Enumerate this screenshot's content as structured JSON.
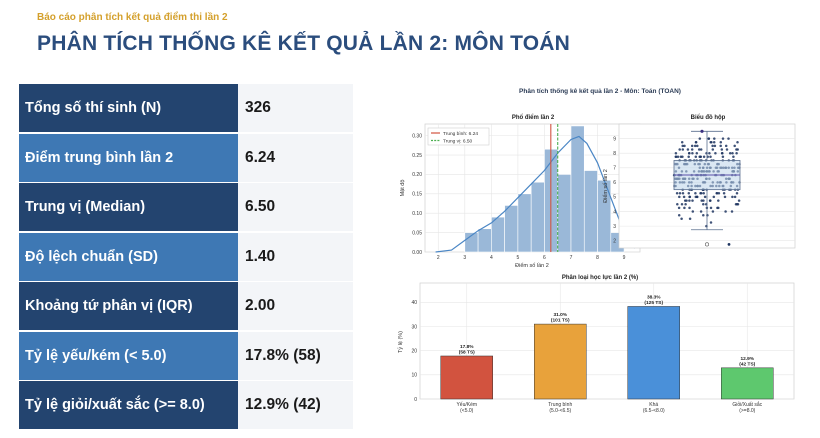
{
  "header": {
    "subtitle": "Báo cáo phân tích kết quả điểm thi lần 2",
    "title": "PHÂN TÍCH THỐNG KÊ KẾT QUẢ LẦN 2: MÔN TOÁN"
  },
  "stats": [
    {
      "label": "Tổng số thí sinh (N)",
      "value": "326"
    },
    {
      "label": "Điểm trung bình lần 2",
      "value": "6.24"
    },
    {
      "label": "Trung vị (Median)",
      "value": "6.50"
    },
    {
      "label": "Độ lệch chuẩn (SD)",
      "value": "1.40"
    },
    {
      "label": "Khoảng tứ phân vị (IQR)",
      "value": "2.00"
    },
    {
      "label": "Tỷ lệ yếu/kém (< 5.0)",
      "value": "17.8% (58)"
    },
    {
      "label": "Tỷ lệ giỏi/xuất sắc (>= 8.0)",
      "value": "12.9% (42)"
    }
  ],
  "colors": {
    "dark_row": "#23446f",
    "light_row": "#3e78b4",
    "accent": "#d4a02c",
    "title": "#2b4d7d"
  },
  "figure": {
    "suptitle": "Phân tích thống kê kết quả lần 2 - Môn: Toán (TOAN)"
  },
  "chart_data": [
    {
      "type": "bar",
      "title": "Phổ điểm lần 2",
      "xlabel": "Điểm số lần 2",
      "ylabel": "Mật độ",
      "xlim": [
        1.5,
        9.6
      ],
      "ylim": [
        0,
        0.33
      ],
      "xticks": [
        "2",
        "3",
        "4",
        "5",
        "6",
        "7",
        "8",
        "9"
      ],
      "yticks": [
        "0.00",
        "0.05",
        "0.10",
        "0.15",
        "0.20",
        "0.25",
        "0.30"
      ],
      "bins": [
        {
          "x0": 3.0,
          "x1": 3.5,
          "value": 0.05
        },
        {
          "x0": 3.5,
          "x1": 4.0,
          "value": 0.06
        },
        {
          "x0": 4.0,
          "x1": 4.5,
          "value": 0.09
        },
        {
          "x0": 4.5,
          "x1": 5.0,
          "value": 0.12
        },
        {
          "x0": 5.0,
          "x1": 5.5,
          "value": 0.15
        },
        {
          "x0": 5.5,
          "x1": 6.0,
          "value": 0.18
        },
        {
          "x0": 6.0,
          "x1": 6.5,
          "value": 0.265
        },
        {
          "x0": 6.5,
          "x1": 7.0,
          "value": 0.2
        },
        {
          "x0": 7.0,
          "x1": 7.5,
          "value": 0.325
        },
        {
          "x0": 7.5,
          "x1": 8.0,
          "value": 0.21
        },
        {
          "x0": 8.0,
          "x1": 8.5,
          "value": 0.185
        },
        {
          "x0": 8.5,
          "x1": 9.0,
          "value": 0.05
        }
      ],
      "kde": [
        [
          1.9,
          0.0
        ],
        [
          2.5,
          0.005
        ],
        [
          3.0,
          0.03
        ],
        [
          3.5,
          0.055
        ],
        [
          4.0,
          0.075
        ],
        [
          4.5,
          0.105
        ],
        [
          5.0,
          0.14
        ],
        [
          5.5,
          0.175
        ],
        [
          6.0,
          0.21
        ],
        [
          6.5,
          0.255
        ],
        [
          7.0,
          0.29
        ],
        [
          7.3,
          0.298
        ],
        [
          7.6,
          0.28
        ],
        [
          8.0,
          0.23
        ],
        [
          8.5,
          0.14
        ],
        [
          9.0,
          0.05
        ],
        [
          9.4,
          0.01
        ]
      ],
      "mean": 6.24,
      "median": 6.5,
      "legend": [
        "Trung bình: 6.24",
        "Trung vị: 6.50"
      ],
      "legend_position": "top-left"
    },
    {
      "type": "scatter",
      "title": "Biểu đồ hộp",
      "ylabel": "Điểm số lần 2",
      "ylim": [
        1.5,
        10
      ],
      "yticks": [
        "2",
        "3",
        "4",
        "5",
        "6",
        "7",
        "8",
        "9"
      ],
      "box": {
        "q1": 5.5,
        "median": 6.5,
        "q3": 7.5,
        "whisker_low": 2.75,
        "whisker_high": 9.5
      },
      "outliers": [
        1.75
      ]
    },
    {
      "type": "bar",
      "title": "Phân loại học lực lần 2 (%)",
      "ylabel": "Tỷ lệ (%)",
      "ylim": [
        0,
        48
      ],
      "yticks": [
        "0",
        "10",
        "20",
        "30",
        "40"
      ],
      "categories": [
        {
          "name": "Yếu/Kém",
          "range": "(<5.0)",
          "value": 17.8,
          "label": "17.8%",
          "count": "(58 TS)",
          "color": "#d2533f"
        },
        {
          "name": "Trung bình",
          "range": "(5.0-<6.5)",
          "value": 31.0,
          "label": "31.0%",
          "count": "(101 TS)",
          "color": "#e8a23b"
        },
        {
          "name": "Khá",
          "range": "(6.5-<8.0)",
          "value": 38.3,
          "label": "38.3%",
          "count": "(125 TS)",
          "color": "#4a90d9"
        },
        {
          "name": "Giỏi/Xuất sắc",
          "range": "(>=8.0)",
          "value": 12.9,
          "label": "12.9%",
          "count": "(42 TS)",
          "color": "#5ec86e"
        }
      ]
    }
  ]
}
